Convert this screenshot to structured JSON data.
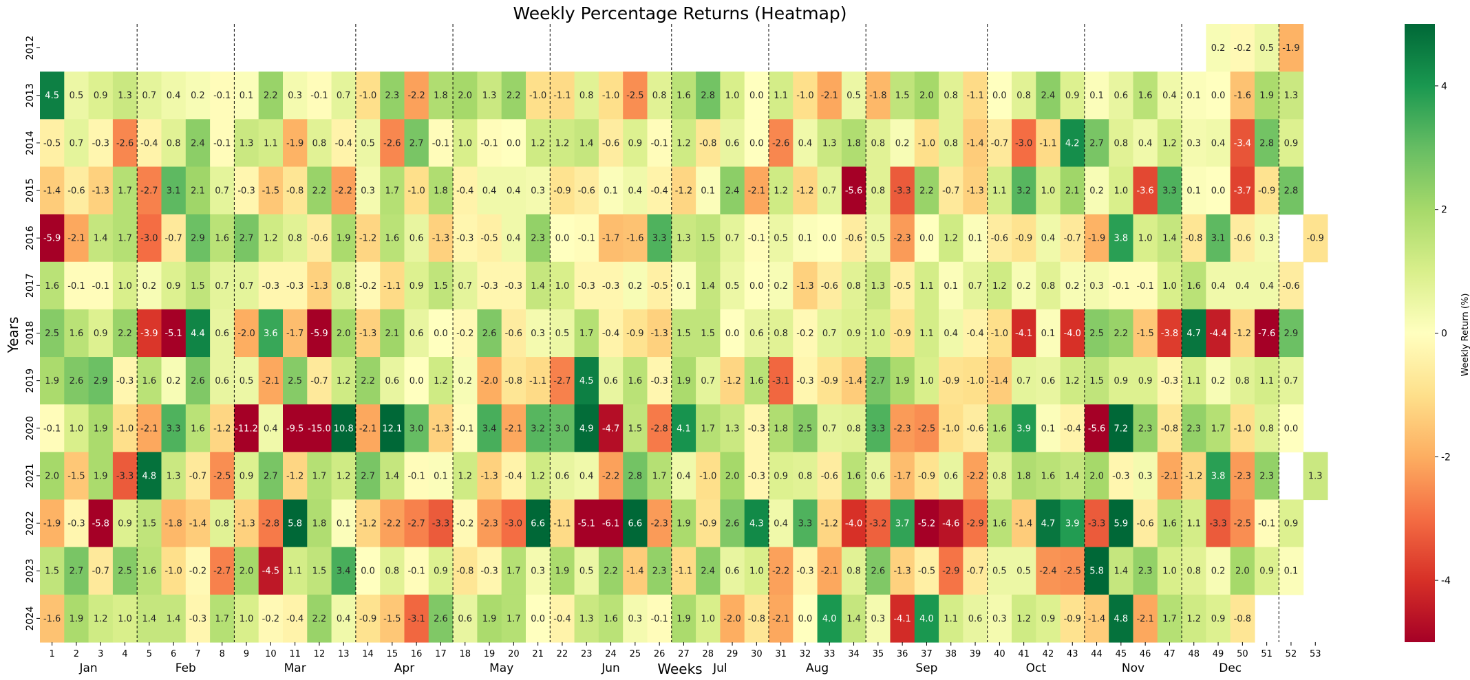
{
  "chart_data": {
    "type": "heatmap",
    "title": "Weekly Percentage Returns (Heatmap)",
    "xlabel": "Weeks",
    "ylabel": "Years",
    "colorbar_label": "Weekly Return (%)",
    "colormap": "RdYlGn",
    "color_range": [
      -5,
      5
    ],
    "colorbar_ticks": [
      4,
      2,
      0,
      -2,
      -4
    ],
    "weeks": [
      1,
      2,
      3,
      4,
      5,
      6,
      7,
      8,
      9,
      10,
      11,
      12,
      13,
      14,
      15,
      16,
      17,
      18,
      19,
      20,
      21,
      22,
      23,
      24,
      25,
      26,
      27,
      28,
      29,
      30,
      31,
      32,
      33,
      34,
      35,
      36,
      37,
      38,
      39,
      40,
      41,
      42,
      43,
      44,
      45,
      46,
      47,
      48,
      49,
      50,
      51,
      52,
      53
    ],
    "years": [
      "2012",
      "2013",
      "2014",
      "2015",
      "2016",
      "2017",
      "2018",
      "2019",
      "2020",
      "2021",
      "2022",
      "2023",
      "2024"
    ],
    "months": [
      {
        "name": "Jan",
        "center_week": 2.5
      },
      {
        "name": "Feb",
        "center_week": 6.5
      },
      {
        "name": "Mar",
        "center_week": 11
      },
      {
        "name": "Apr",
        "center_week": 15.5
      },
      {
        "name": "May",
        "center_week": 19.5
      },
      {
        "name": "Jun",
        "center_week": 24
      },
      {
        "name": "Jul",
        "center_week": 28.5
      },
      {
        "name": "Aug",
        "center_week": 32.5
      },
      {
        "name": "Sep",
        "center_week": 37
      },
      {
        "name": "Oct",
        "center_week": 41.5
      },
      {
        "name": "Nov",
        "center_week": 45.5
      },
      {
        "name": "Dec",
        "center_week": 49.5
      }
    ],
    "month_boundaries_after_week": [
      4,
      8,
      13,
      17,
      21,
      26,
      30,
      34,
      39,
      43,
      47,
      51
    ],
    "values": [
      [
        null,
        null,
        null,
        null,
        null,
        null,
        null,
        null,
        null,
        null,
        null,
        null,
        null,
        null,
        null,
        null,
        null,
        null,
        null,
        null,
        null,
        null,
        null,
        null,
        null,
        null,
        null,
        null,
        null,
        null,
        null,
        null,
        null,
        null,
        null,
        null,
        null,
        null,
        null,
        null,
        null,
        null,
        null,
        null,
        null,
        null,
        null,
        null,
        0.2,
        -0.2,
        0.5,
        -1.9,
        null
      ],
      [
        4.5,
        0.5,
        0.9,
        1.3,
        0.7,
        0.4,
        0.2,
        -0.1,
        0.1,
        2.2,
        0.3,
        -0.1,
        0.7,
        -1.0,
        2.3,
        -2.2,
        1.8,
        2.0,
        1.3,
        2.2,
        -1.0,
        -1.1,
        0.8,
        -1.0,
        -2.5,
        0.8,
        1.6,
        2.8,
        1.0,
        -0.0,
        1.1,
        -1.0,
        -2.1,
        0.5,
        -1.8,
        1.5,
        2.0,
        0.8,
        -1.1,
        -0.0,
        0.8,
        2.4,
        0.9,
        0.1,
        0.6,
        1.6,
        0.4,
        0.1,
        -0.0,
        -1.6,
        1.9,
        1.3,
        null
      ],
      [
        -0.5,
        0.7,
        -0.3,
        -2.6,
        -0.4,
        0.8,
        2.4,
        -0.1,
        1.3,
        1.1,
        -1.9,
        0.8,
        -0.4,
        0.5,
        -2.6,
        2.7,
        -0.1,
        1.0,
        -0.1,
        0.0,
        1.2,
        1.2,
        1.4,
        -0.6,
        0.9,
        -0.1,
        1.2,
        -0.8,
        0.6,
        0.0,
        -2.6,
        0.4,
        1.3,
        1.8,
        0.8,
        0.2,
        -1.0,
        0.8,
        -1.4,
        -0.7,
        -3.0,
        -1.1,
        4.2,
        2.7,
        0.8,
        0.4,
        1.2,
        0.3,
        0.4,
        -3.4,
        2.8,
        0.9,
        null
      ],
      [
        -1.4,
        -0.6,
        -1.3,
        1.7,
        -2.7,
        3.1,
        2.1,
        0.7,
        -0.3,
        -1.5,
        -0.8,
        2.2,
        -2.2,
        0.3,
        1.7,
        -1.0,
        1.8,
        -0.4,
        0.4,
        0.4,
        0.3,
        -0.9,
        -0.6,
        0.1,
        0.4,
        -0.4,
        -1.2,
        0.1,
        2.4,
        -2.1,
        1.2,
        -1.2,
        0.7,
        -5.6,
        0.8,
        -3.3,
        2.2,
        -0.7,
        -1.3,
        1.1,
        3.2,
        1.0,
        2.1,
        0.2,
        1.0,
        -3.6,
        3.3,
        0.1,
        0.0,
        -3.7,
        -0.9,
        2.8,
        null
      ],
      [
        -5.9,
        -2.1,
        1.4,
        1.7,
        -3.0,
        -0.7,
        2.9,
        1.6,
        2.7,
        1.2,
        0.8,
        -0.6,
        1.9,
        -1.2,
        1.6,
        0.6,
        -1.3,
        -0.3,
        -0.5,
        0.4,
        2.3,
        0.0,
        -0.1,
        -1.7,
        -1.6,
        3.3,
        1.3,
        1.5,
        0.7,
        -0.1,
        0.5,
        0.1,
        0.0,
        -0.6,
        0.5,
        -2.3,
        0.0,
        1.2,
        0.1,
        -0.6,
        -0.9,
        0.4,
        -0.7,
        -1.9,
        3.8,
        1.0,
        1.4,
        -0.8,
        3.1,
        -0.6,
        0.3,
        null,
        -0.9
      ],
      [
        1.6,
        -0.1,
        -0.1,
        1.0,
        0.2,
        0.9,
        1.5,
        0.7,
        0.7,
        -0.3,
        -0.3,
        -1.3,
        0.8,
        -0.2,
        -1.1,
        0.9,
        1.5,
        0.7,
        -0.3,
        -0.3,
        1.4,
        1.0,
        -0.3,
        -0.3,
        0.2,
        -0.5,
        0.1,
        1.4,
        0.5,
        0.0,
        0.2,
        -1.3,
        -0.6,
        0.8,
        1.3,
        -0.5,
        1.1,
        0.1,
        0.7,
        1.2,
        0.2,
        0.8,
        0.2,
        0.3,
        -0.1,
        -0.1,
        1.0,
        1.6,
        0.4,
        0.4,
        0.4,
        -0.6,
        null
      ],
      [
        2.5,
        1.6,
        0.9,
        2.2,
        -3.9,
        -5.1,
        4.4,
        0.6,
        -2.0,
        3.6,
        -1.7,
        -5.9,
        2.0,
        -1.3,
        2.1,
        0.6,
        -0.0,
        -0.2,
        2.6,
        -0.6,
        0.3,
        0.5,
        1.7,
        -0.4,
        -0.9,
        -1.3,
        1.5,
        1.5,
        0.0,
        0.6,
        0.8,
        -0.2,
        0.7,
        0.9,
        1.0,
        -0.9,
        1.1,
        0.4,
        -0.4,
        -1.0,
        -4.1,
        0.1,
        -4.0,
        2.5,
        2.2,
        -1.5,
        -3.8,
        4.7,
        -4.4,
        -1.2,
        -7.6,
        2.9,
        null
      ],
      [
        1.9,
        2.6,
        2.9,
        -0.3,
        1.6,
        0.2,
        2.6,
        0.6,
        0.5,
        -2.1,
        2.5,
        -0.7,
        1.2,
        2.2,
        0.6,
        -0.0,
        1.2,
        0.2,
        -2.0,
        -0.8,
        -1.1,
        -2.7,
        4.5,
        0.6,
        1.6,
        -0.3,
        1.9,
        0.7,
        -1.2,
        1.6,
        -3.1,
        -0.3,
        -0.9,
        -1.4,
        2.7,
        1.9,
        1.0,
        -0.9,
        -1.0,
        -1.4,
        0.7,
        0.6,
        1.2,
        1.5,
        0.9,
        0.9,
        -0.3,
        1.1,
        0.2,
        0.8,
        1.1,
        0.7,
        null
      ],
      [
        -0.1,
        1.0,
        1.9,
        -1.0,
        -2.1,
        3.3,
        1.6,
        -1.2,
        -11.2,
        0.4,
        -9.5,
        -15.0,
        10.8,
        -2.1,
        12.1,
        3.0,
        -1.3,
        -0.1,
        3.4,
        -2.1,
        3.2,
        3.0,
        4.9,
        -4.7,
        1.5,
        -2.8,
        4.1,
        1.7,
        1.3,
        -0.3,
        1.8,
        2.5,
        0.7,
        0.8,
        3.3,
        -2.3,
        -2.5,
        -1.0,
        -0.6,
        1.6,
        3.9,
        0.1,
        -0.4,
        -5.6,
        7.2,
        2.3,
        -0.8,
        2.3,
        1.7,
        -1.0,
        0.8,
        -0.0,
        null
      ],
      [
        2.0,
        -1.5,
        1.9,
        -3.3,
        4.8,
        1.3,
        -0.7,
        -2.5,
        0.9,
        2.7,
        -1.2,
        1.7,
        1.2,
        2.7,
        1.4,
        -0.1,
        0.1,
        1.2,
        -1.3,
        -0.4,
        1.2,
        0.6,
        0.4,
        -2.2,
        2.8,
        1.7,
        0.4,
        -1.0,
        2.0,
        -0.3,
        0.9,
        0.8,
        -0.6,
        1.6,
        0.6,
        -1.7,
        -0.9,
        0.6,
        -2.2,
        0.8,
        1.8,
        1.6,
        1.4,
        2.0,
        -0.3,
        0.3,
        -2.1,
        -1.2,
        3.8,
        -2.3,
        2.3,
        null,
        1.3
      ],
      [
        -1.9,
        -0.3,
        -5.8,
        0.9,
        1.5,
        -1.8,
        -1.4,
        0.8,
        -1.3,
        -2.8,
        5.8,
        1.8,
        0.1,
        -1.2,
        -2.2,
        -2.7,
        -3.3,
        -0.2,
        -2.3,
        -3.0,
        6.6,
        -1.1,
        -5.1,
        -6.1,
        6.6,
        -2.3,
        1.9,
        -0.9,
        2.6,
        4.3,
        0.4,
        3.3,
        -1.2,
        -4.0,
        -3.2,
        3.7,
        -5.2,
        -4.6,
        -2.9,
        1.6,
        -1.4,
        4.7,
        3.9,
        -3.3,
        5.9,
        -0.6,
        1.6,
        1.1,
        -3.3,
        -2.5,
        -0.1,
        0.9,
        null
      ],
      [
        1.5,
        2.7,
        -0.7,
        2.5,
        1.6,
        -1.0,
        -0.2,
        -2.7,
        2.0,
        -4.5,
        1.1,
        1.5,
        3.4,
        -0.0,
        0.8,
        -0.1,
        0.9,
        -0.8,
        -0.3,
        1.7,
        0.3,
        1.9,
        0.5,
        2.2,
        -1.4,
        2.3,
        -1.1,
        2.4,
        0.6,
        1.0,
        -2.2,
        -0.3,
        -2.1,
        0.8,
        2.6,
        -1.3,
        -0.5,
        -2.9,
        -0.7,
        0.5,
        0.5,
        -2.4,
        -2.5,
        5.8,
        1.4,
        2.3,
        1.0,
        0.8,
        0.2,
        2.0,
        0.9,
        0.1,
        null
      ],
      [
        -1.6,
        1.9,
        1.2,
        1.0,
        1.4,
        1.4,
        -0.3,
        1.7,
        1.0,
        -0.2,
        -0.4,
        2.2,
        0.4,
        -0.9,
        -1.5,
        -3.1,
        2.6,
        0.6,
        1.9,
        1.7,
        -0.0,
        -0.4,
        1.3,
        1.6,
        0.3,
        -0.1,
        1.9,
        1.0,
        -2.0,
        -0.8,
        -2.1,
        0.0,
        4.0,
        1.4,
        0.3,
        -4.1,
        4.0,
        1.1,
        0.6,
        0.3,
        1.2,
        0.9,
        -0.9,
        -1.4,
        4.8,
        -2.1,
        1.7,
        1.2,
        0.9,
        -0.8,
        null,
        null,
        null
      ]
    ]
  }
}
